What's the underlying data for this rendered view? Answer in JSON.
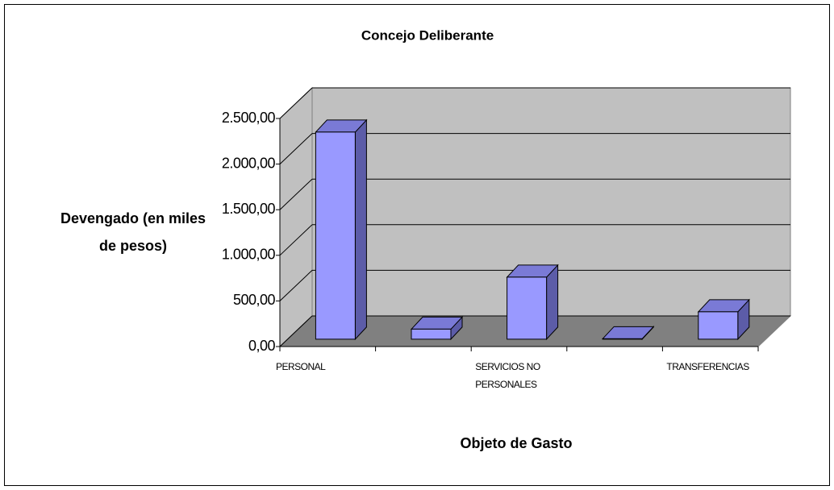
{
  "chart_data": {
    "type": "bar3d",
    "title": "Concejo Deliberante",
    "y_label": "Devengado (en miles de pesos)",
    "x_label": "Objeto de Gasto",
    "categories": [
      "PERSONAL",
      null,
      "SERVICIOS NO PERSONALES",
      null,
      "TRANSFERENCIAS"
    ],
    "values": [
      2270,
      110,
      680,
      5,
      300
    ],
    "color": "#9999ff",
    "ylim": [
      0,
      2500
    ],
    "yticks": [
      {
        "value": 0,
        "label": "0,00"
      },
      {
        "value": 500,
        "label": "500,00"
      },
      {
        "value": 1000,
        "label": "1.000,00"
      },
      {
        "value": 1500,
        "label": "1.500,00"
      },
      {
        "value": 2000,
        "label": "2.000,00"
      },
      {
        "value": 2500,
        "label": "2.500,00"
      }
    ],
    "grid": true
  }
}
